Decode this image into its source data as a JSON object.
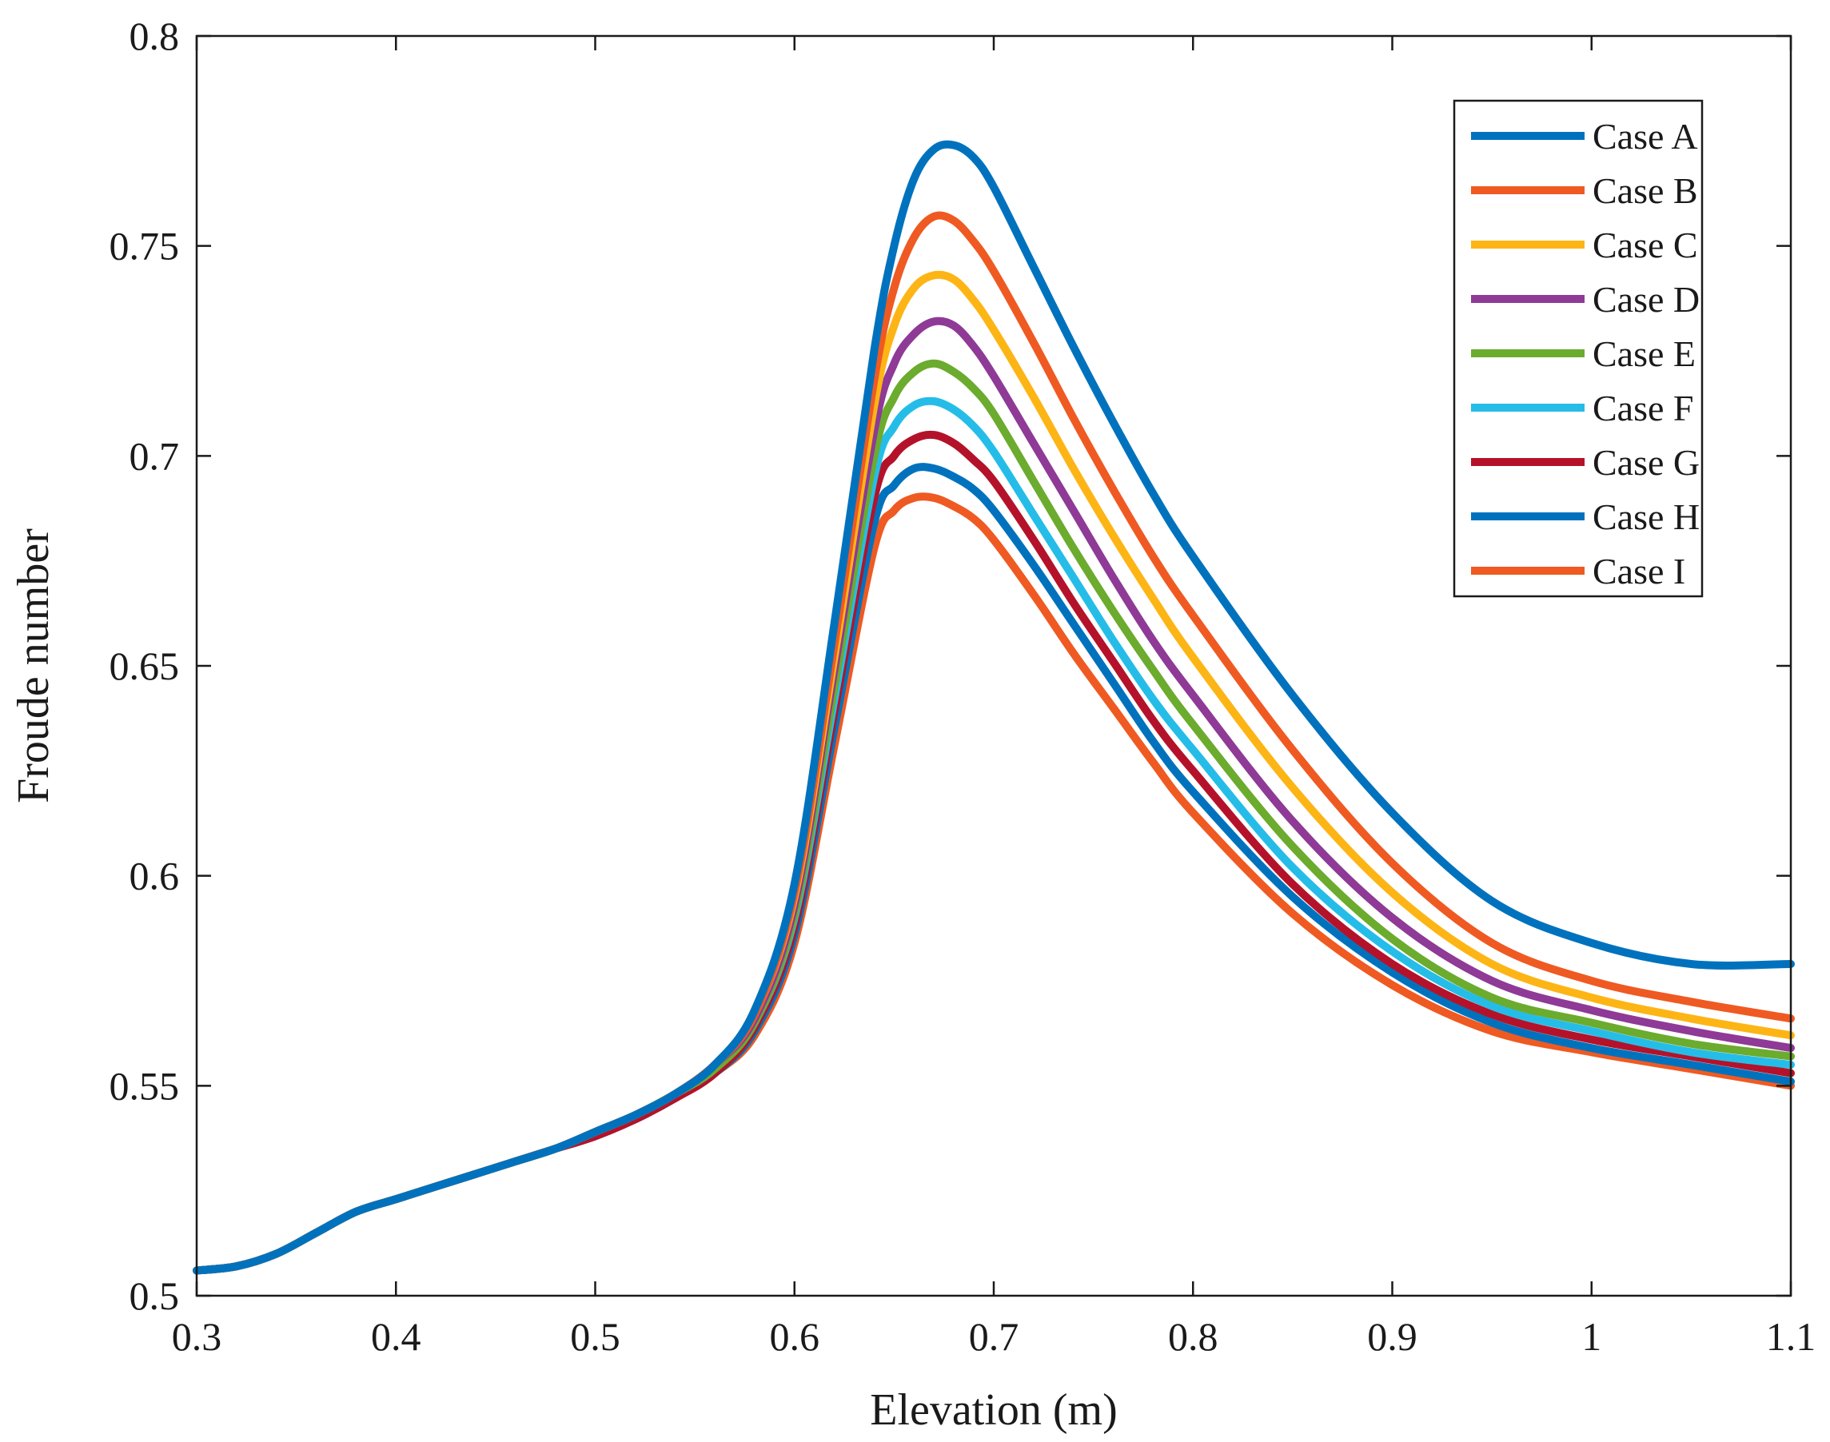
{
  "chart_data": {
    "type": "line",
    "title": "",
    "xlabel": "Elevation (m)",
    "ylabel": "Froude number",
    "xlim": [
      0.3,
      1.1
    ],
    "ylim": [
      0.5,
      0.8
    ],
    "x_ticks": [
      0.3,
      0.4,
      0.5,
      0.6,
      0.7,
      0.8,
      0.9,
      1.0,
      1.1
    ],
    "x_tick_labels": [
      "0.3",
      "0.4",
      "0.5",
      "0.6",
      "0.7",
      "0.8",
      "0.9",
      "1",
      "1.1"
    ],
    "y_ticks": [
      0.5,
      0.55,
      0.6,
      0.65,
      0.7,
      0.75,
      0.8
    ],
    "y_tick_labels": [
      "0.5",
      "0.55",
      "0.6",
      "0.65",
      "0.7",
      "0.75",
      "0.8"
    ],
    "grid": false,
    "legend_position": "top-right",
    "x": [
      0.3,
      0.32,
      0.34,
      0.36,
      0.38,
      0.4,
      0.42,
      0.44,
      0.46,
      0.48,
      0.5,
      0.52,
      0.54,
      0.56,
      0.58,
      0.6,
      0.62,
      0.64,
      0.65,
      0.66,
      0.67,
      0.68,
      0.69,
      0.7,
      0.72,
      0.74,
      0.76,
      0.78,
      0.8,
      0.85,
      0.9,
      0.95,
      1.0,
      1.05,
      1.1
    ],
    "series": [
      {
        "name": "Case A",
        "color": "#0072BD",
        "values": [
          0.506,
          0.507,
          0.51,
          0.515,
          0.52,
          0.523,
          0.526,
          0.529,
          0.532,
          0.535,
          0.539,
          0.543,
          0.548,
          0.555,
          0.568,
          0.598,
          0.66,
          0.725,
          0.75,
          0.766,
          0.773,
          0.774,
          0.771,
          0.764,
          0.745,
          0.726,
          0.708,
          0.691,
          0.676,
          0.643,
          0.615,
          0.594,
          0.584,
          0.579,
          0.579
        ]
      },
      {
        "name": "Case B",
        "color": "#EF5A22",
        "values": [
          0.506,
          0.507,
          0.51,
          0.515,
          0.52,
          0.523,
          0.526,
          0.529,
          0.532,
          0.535,
          0.539,
          0.543,
          0.548,
          0.555,
          0.567,
          0.596,
          0.655,
          0.718,
          0.74,
          0.752,
          0.757,
          0.756,
          0.751,
          0.744,
          0.727,
          0.709,
          0.692,
          0.676,
          0.662,
          0.63,
          0.603,
          0.584,
          0.575,
          0.57,
          0.566
        ]
      },
      {
        "name": "Case C",
        "color": "#FDB515",
        "values": [
          0.506,
          0.507,
          0.51,
          0.515,
          0.52,
          0.523,
          0.526,
          0.529,
          0.532,
          0.535,
          0.539,
          0.543,
          0.548,
          0.555,
          0.567,
          0.595,
          0.652,
          0.712,
          0.731,
          0.74,
          0.743,
          0.742,
          0.737,
          0.73,
          0.714,
          0.697,
          0.681,
          0.666,
          0.652,
          0.621,
          0.596,
          0.579,
          0.571,
          0.566,
          0.562
        ]
      },
      {
        "name": "Case D",
        "color": "#8E3A96",
        "values": [
          0.506,
          0.507,
          0.51,
          0.515,
          0.52,
          0.523,
          0.526,
          0.529,
          0.532,
          0.535,
          0.539,
          0.543,
          0.548,
          0.555,
          0.566,
          0.593,
          0.649,
          0.706,
          0.722,
          0.729,
          0.732,
          0.731,
          0.726,
          0.719,
          0.703,
          0.687,
          0.671,
          0.656,
          0.643,
          0.613,
          0.59,
          0.575,
          0.568,
          0.563,
          0.559
        ]
      },
      {
        "name": "Case E",
        "color": "#6BAB2E",
        "values": [
          0.506,
          0.507,
          0.51,
          0.515,
          0.52,
          0.523,
          0.526,
          0.529,
          0.532,
          0.535,
          0.539,
          0.543,
          0.548,
          0.554,
          0.565,
          0.591,
          0.645,
          0.7,
          0.714,
          0.72,
          0.722,
          0.72,
          0.716,
          0.71,
          0.694,
          0.678,
          0.663,
          0.649,
          0.636,
          0.607,
          0.585,
          0.571,
          0.565,
          0.56,
          0.557
        ]
      },
      {
        "name": "Case F",
        "color": "#25BDE8",
        "values": [
          0.506,
          0.507,
          0.51,
          0.515,
          0.52,
          0.523,
          0.526,
          0.529,
          0.532,
          0.535,
          0.539,
          0.543,
          0.548,
          0.554,
          0.565,
          0.59,
          0.642,
          0.695,
          0.707,
          0.712,
          0.713,
          0.711,
          0.707,
          0.701,
          0.686,
          0.671,
          0.656,
          0.642,
          0.63,
          0.602,
          0.582,
          0.569,
          0.563,
          0.558,
          0.555
        ]
      },
      {
        "name": "Case G",
        "color": "#B4122A",
        "values": [
          0.506,
          0.507,
          0.51,
          0.515,
          0.52,
          0.523,
          0.526,
          0.529,
          0.532,
          0.535,
          0.538,
          0.542,
          0.547,
          0.553,
          0.564,
          0.588,
          0.639,
          0.69,
          0.7,
          0.704,
          0.705,
          0.703,
          0.699,
          0.694,
          0.68,
          0.665,
          0.651,
          0.637,
          0.625,
          0.598,
          0.579,
          0.567,
          0.561,
          0.557,
          0.553
        ]
      },
      {
        "name": "Case H",
        "color": "#0072BD",
        "values": [
          0.506,
          0.507,
          0.51,
          0.515,
          0.52,
          0.523,
          0.526,
          0.529,
          0.532,
          0.535,
          0.538,
          0.542,
          0.547,
          0.553,
          0.563,
          0.586,
          0.635,
          0.684,
          0.693,
          0.697,
          0.697,
          0.695,
          0.692,
          0.687,
          0.674,
          0.66,
          0.646,
          0.632,
          0.62,
          0.595,
          0.577,
          0.565,
          0.559,
          0.555,
          0.551
        ]
      },
      {
        "name": "Case I",
        "color": "#EF5A22",
        "values": [
          0.506,
          0.507,
          0.51,
          0.515,
          0.52,
          0.523,
          0.526,
          0.529,
          0.532,
          0.535,
          0.538,
          0.542,
          0.547,
          0.553,
          0.562,
          0.584,
          0.631,
          0.678,
          0.687,
          0.69,
          0.69,
          0.688,
          0.685,
          0.68,
          0.667,
          0.653,
          0.64,
          0.627,
          0.615,
          0.591,
          0.574,
          0.563,
          0.558,
          0.554,
          0.55
        ]
      }
    ]
  }
}
